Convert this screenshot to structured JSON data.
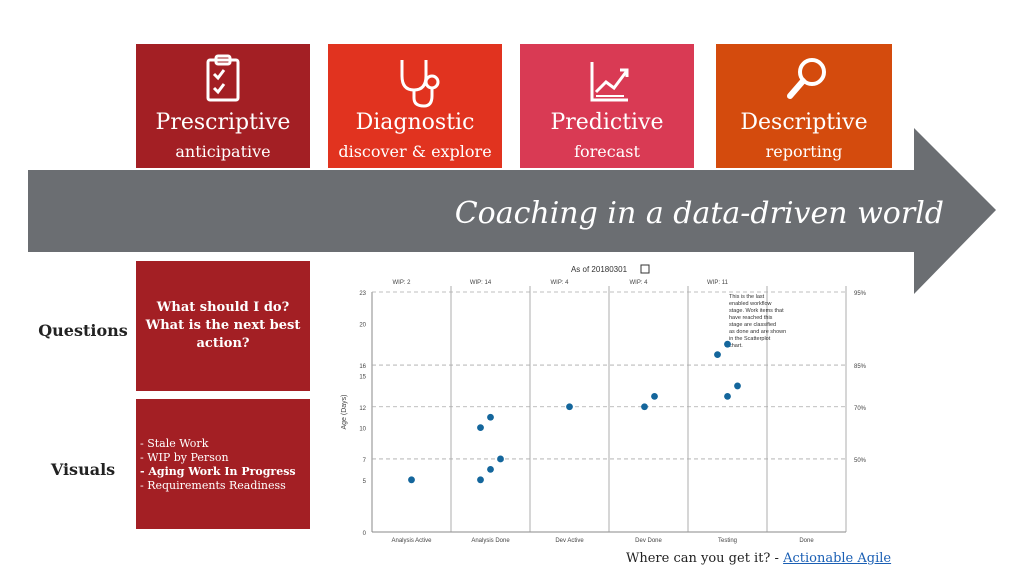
{
  "tiles": [
    {
      "title": "Prescriptive",
      "subtitle": "anticipative",
      "color": "#a31f24",
      "icon": "clipboard-check-icon"
    },
    {
      "title": "Diagnostic",
      "subtitle": "discover & explore",
      "color": "#e1331f",
      "icon": "stethoscope-icon"
    },
    {
      "title": "Predictive",
      "subtitle": "forecast",
      "color": "#d93a54",
      "icon": "trend-chart-icon"
    },
    {
      "title": "Descriptive",
      "subtitle": "reporting",
      "color": "#d44b0d",
      "icon": "magnifier-icon"
    }
  ],
  "arrow": {
    "text": "Coaching in a data-driven world",
    "color": "#6b6e72"
  },
  "labels": {
    "questions": "Questions",
    "visuals": "Visuals"
  },
  "questions_box": {
    "text": "What should I do? What is the next best action?"
  },
  "visuals_box": {
    "items": [
      "- Stale Work",
      "- WIP by Person",
      "- Aging Work In Progress",
      "- Requirements Readiness"
    ]
  },
  "footer": {
    "prefix": "Where can you get it? - ",
    "link": "Actionable Agile"
  },
  "chart_data": {
    "type": "scatter",
    "title": "As of 20180301",
    "ylabel": "Age (Days)",
    "ylim": [
      0,
      23
    ],
    "yticks": [
      0,
      5,
      7,
      10,
      12,
      15,
      16,
      20,
      23
    ],
    "categories": [
      "Analysis Active",
      "Analysis Done",
      "Dev Active",
      "Dev Done",
      "Testing",
      "Done"
    ],
    "wip_labels": [
      "WIP: 2",
      "WIP: 14",
      "WIP: 4",
      "WIP: 4",
      "WIP: 11",
      ""
    ],
    "percentiles": [
      {
        "label": "95%",
        "value": 23
      },
      {
        "label": "85%",
        "value": 16
      },
      {
        "label": "70%",
        "value": 12
      },
      {
        "label": "50%",
        "value": 7
      }
    ],
    "note": "This is the last enabled workflow stage. Work items that have reached this stage are classified as done and are shown in the Scatterplot chart.",
    "points": [
      {
        "col": 0,
        "dx": 0,
        "y": 5
      },
      {
        "col": 1,
        "dx": -10,
        "y": 10
      },
      {
        "col": 1,
        "dx": 0,
        "y": 11
      },
      {
        "col": 1,
        "dx": 10,
        "y": 7
      },
      {
        "col": 1,
        "dx": 0,
        "y": 6
      },
      {
        "col": 1,
        "dx": -10,
        "y": 5
      },
      {
        "col": 2,
        "dx": 0,
        "y": 12
      },
      {
        "col": 3,
        "dx": -4,
        "y": 12
      },
      {
        "col": 3,
        "dx": 6,
        "y": 13
      },
      {
        "col": 4,
        "dx": -10,
        "y": 17
      },
      {
        "col": 4,
        "dx": 0,
        "y": 18
      },
      {
        "col": 4,
        "dx": 10,
        "y": 14
      },
      {
        "col": 4,
        "dx": 0,
        "y": 13
      }
    ],
    "point_color": "#14669c"
  }
}
